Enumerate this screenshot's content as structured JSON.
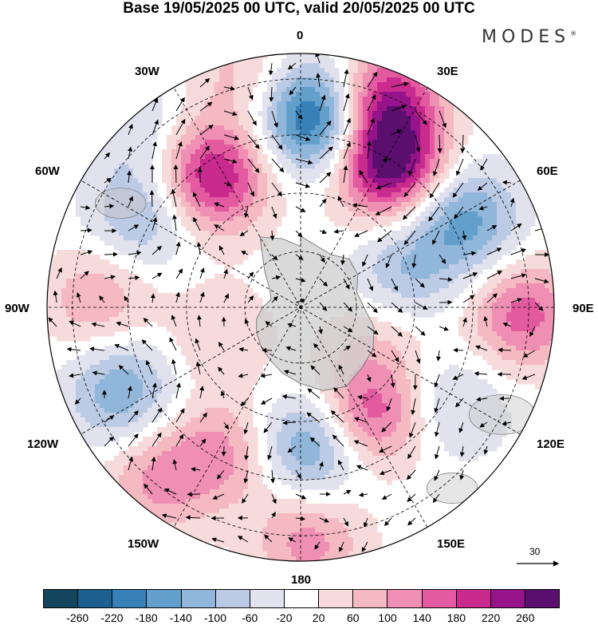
{
  "title": "Base 19/05/2025 00 UTC, valid 20/05/2025 00 UTC",
  "brand": "MODES",
  "brand_mark": "®",
  "longitude_labels": {
    "lon_0": "0",
    "lon_30e": "30E",
    "lon_60e": "60E",
    "lon_90e": "90E",
    "lon_120e": "120E",
    "lon_150e": "150E",
    "lon_180": "180",
    "lon_150w": "150W",
    "lon_120w": "120W",
    "lon_90w": "90W",
    "lon_60w": "60W",
    "lon_30w": "30W"
  },
  "vector_scale": {
    "label": "30"
  },
  "colorbar": {
    "colors": [
      "#14455e",
      "#1d5f8e",
      "#3881b8",
      "#629fcb",
      "#90b6d9",
      "#bccbe5",
      "#e2e2ef",
      "#ffffff",
      "#f7dbdb",
      "#f5b9c2",
      "#ef8fb3",
      "#e35aa0",
      "#c82a8e",
      "#97138a",
      "#5a0f6e"
    ],
    "ticks": [
      "-260",
      "-220",
      "-180",
      "-140",
      "-100",
      "-60",
      "-20",
      "20",
      "60",
      "100",
      "140",
      "180",
      "220",
      "260"
    ]
  },
  "anomaly_fields": [
    {
      "lon": 5,
      "r": 0.75,
      "amp": -260
    },
    {
      "lon": 32,
      "r": 0.66,
      "amp": 280
    },
    {
      "lon": 22,
      "r": 0.88,
      "amp": 220
    },
    {
      "lon": 62,
      "r": 0.73,
      "amp": -160
    },
    {
      "lon": 92,
      "r": 0.88,
      "amp": 160
    },
    {
      "lon": 72,
      "r": 0.42,
      "amp": -100
    },
    {
      "lon": 122,
      "r": 0.72,
      "amp": -70
    },
    {
      "lon": 148,
      "r": 0.5,
      "amp": 180
    },
    {
      "lon": 175,
      "r": 0.55,
      "amp": -170
    },
    {
      "lon": 178,
      "r": 0.92,
      "amp": 120
    },
    {
      "lon": 208,
      "r": 0.65,
      "amp": 110
    },
    {
      "lon": 220,
      "r": 0.88,
      "amp": 110
    },
    {
      "lon": 245,
      "r": 0.78,
      "amp": -140
    },
    {
      "lon": 272,
      "r": 0.8,
      "amp": 100
    },
    {
      "lon": 300,
      "r": 0.72,
      "amp": -110
    },
    {
      "lon": 326,
      "r": 0.62,
      "amp": 230
    },
    {
      "lon": 318,
      "r": 0.95,
      "amp": -60
    },
    {
      "lon": 345,
      "r": 0.95,
      "amp": 70
    },
    {
      "lon": 250,
      "r": 0.35,
      "amp": 60
    },
    {
      "lon": 110,
      "r": 0.33,
      "amp": 60
    }
  ]
}
